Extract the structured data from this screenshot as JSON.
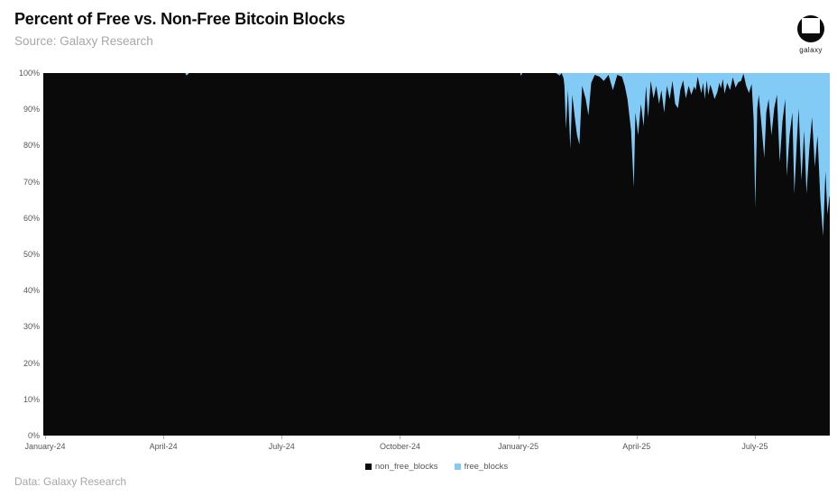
{
  "header": {
    "title": "Percent of Free vs. Non-Free Bitcoin Blocks",
    "subtitle": "Source: Galaxy Research",
    "logo": {
      "brand": "galaxy"
    }
  },
  "footer": {
    "data_source": "Data: Galaxy Research"
  },
  "legend": [
    {
      "label": "non_free_blocks",
      "color": "#0a0a0a"
    },
    {
      "label": "free_blocks",
      "color": "#83cbf7"
    }
  ],
  "chart_data": {
    "type": "area",
    "stacked": true,
    "title": "Percent of Free vs. Non-Free Bitcoin Blocks",
    "xlabel": "",
    "ylabel": "",
    "ylim": [
      0,
      100
    ],
    "grid": false,
    "legend_position": "bottom-center",
    "y_tick_labels": [
      "0%",
      "10%",
      "20%",
      "30%",
      "40%",
      "50%",
      "60%",
      "70%",
      "80%",
      "90%",
      "100%"
    ],
    "x_unit": "months since January 2024",
    "x_range": [
      0,
      19.9
    ],
    "x_ticks": [
      {
        "t": 0,
        "label": "January-24"
      },
      {
        "t": 3,
        "label": "April-24"
      },
      {
        "t": 6,
        "label": "July-24"
      },
      {
        "t": 9,
        "label": "October-24"
      },
      {
        "t": 12,
        "label": "January-25"
      },
      {
        "t": 15,
        "label": "April-25"
      },
      {
        "t": 18,
        "label": "July-25"
      }
    ],
    "series": [
      {
        "name": "non_free_blocks",
        "color": "#0a0a0a",
        "stack_position": "bottom"
      },
      {
        "name": "free_blocks",
        "color": "#83cbf7",
        "stack_position": "top",
        "derivation": "100 - non_free_blocks"
      }
    ],
    "point_format": [
      "months_since_jan_2024",
      "non_free_blocks_pct"
    ],
    "points": [
      [
        0,
        100
      ],
      [
        1,
        100
      ],
      [
        2,
        100
      ],
      [
        3,
        100
      ],
      [
        3.55,
        100
      ],
      [
        3.59,
        99.3
      ],
      [
        3.65,
        100
      ],
      [
        4.5,
        100
      ],
      [
        5.5,
        100
      ],
      [
        6.5,
        100
      ],
      [
        7.5,
        100
      ],
      [
        8.5,
        100
      ],
      [
        9.5,
        100
      ],
      [
        10.5,
        100
      ],
      [
        11.5,
        100
      ],
      [
        12,
        100
      ],
      [
        12.05,
        100
      ],
      [
        12.07,
        99.2
      ],
      [
        12.1,
        100
      ],
      [
        12.6,
        100
      ],
      [
        12.95,
        100
      ],
      [
        13.05,
        99.3
      ],
      [
        13.1,
        100
      ],
      [
        13.15,
        98.5
      ],
      [
        13.17,
        96.5
      ],
      [
        13.21,
        84.6
      ],
      [
        13.26,
        95.3
      ],
      [
        13.32,
        79.1
      ],
      [
        13.37,
        94
      ],
      [
        13.44,
        87.1
      ],
      [
        13.49,
        82.8
      ],
      [
        13.55,
        80.3
      ],
      [
        13.62,
        96.5
      ],
      [
        13.71,
        92.8
      ],
      [
        13.78,
        88.3
      ],
      [
        13.85,
        97.3
      ],
      [
        13.94,
        99.5
      ],
      [
        14.06,
        99
      ],
      [
        14.17,
        97.8
      ],
      [
        14.29,
        99.5
      ],
      [
        14.4,
        95.3
      ],
      [
        14.51,
        99.5
      ],
      [
        14.63,
        99
      ],
      [
        14.7,
        96.5
      ],
      [
        14.77,
        92.8
      ],
      [
        14.86,
        84.1
      ],
      [
        14.93,
        68.4
      ],
      [
        14.97,
        89.1
      ],
      [
        15.04,
        82.8
      ],
      [
        15.11,
        91.5
      ],
      [
        15.18,
        85.3
      ],
      [
        15.24,
        96.5
      ],
      [
        15.29,
        87.8
      ],
      [
        15.36,
        97.8
      ],
      [
        15.43,
        93
      ],
      [
        15.5,
        96.5
      ],
      [
        15.57,
        91.5
      ],
      [
        15.63,
        95.3
      ],
      [
        15.7,
        89.1
      ],
      [
        15.77,
        96.5
      ],
      [
        15.84,
        92.8
      ],
      [
        15.91,
        97.8
      ],
      [
        15.98,
        91.5
      ],
      [
        16.05,
        90.3
      ],
      [
        16.11,
        95.3
      ],
      [
        16.18,
        98
      ],
      [
        16.25,
        93
      ],
      [
        16.32,
        96.5
      ],
      [
        16.39,
        94
      ],
      [
        16.46,
        96.3
      ],
      [
        16.5,
        95.3
      ],
      [
        16.55,
        99
      ],
      [
        16.64,
        94.5
      ],
      [
        16.69,
        97.3
      ],
      [
        16.73,
        92.8
      ],
      [
        16.78,
        98
      ],
      [
        16.82,
        94
      ],
      [
        16.87,
        96.8
      ],
      [
        16.91,
        95.5
      ],
      [
        16.98,
        92.8
      ],
      [
        17.05,
        94.8
      ],
      [
        17.1,
        97.3
      ],
      [
        17.14,
        95.8
      ],
      [
        17.19,
        98.3
      ],
      [
        17.23,
        94.3
      ],
      [
        17.3,
        97.3
      ],
      [
        17.37,
        95.3
      ],
      [
        17.44,
        98.8
      ],
      [
        17.51,
        96
      ],
      [
        17.58,
        97.5
      ],
      [
        17.65,
        97.8
      ],
      [
        17.71,
        99.8
      ],
      [
        17.78,
        96.5
      ],
      [
        17.85,
        94.5
      ],
      [
        17.92,
        97
      ],
      [
        17.97,
        87.1
      ],
      [
        18.01,
        62.9
      ],
      [
        18.06,
        90.3
      ],
      [
        18.1,
        94
      ],
      [
        18.17,
        85.3
      ],
      [
        18.24,
        76.6
      ],
      [
        18.29,
        89.1
      ],
      [
        18.35,
        92.8
      ],
      [
        18.42,
        82.8
      ],
      [
        18.49,
        90.3
      ],
      [
        18.56,
        94
      ],
      [
        18.63,
        75.4
      ],
      [
        18.7,
        86.6
      ],
      [
        18.77,
        92.8
      ],
      [
        18.81,
        71.6
      ],
      [
        18.88,
        82.8
      ],
      [
        18.95,
        89.1
      ],
      [
        19,
        66.7
      ],
      [
        19.06,
        80.3
      ],
      [
        19.11,
        90.3
      ],
      [
        19.18,
        70.4
      ],
      [
        19.25,
        84.1
      ],
      [
        19.31,
        66.7
      ],
      [
        19.38,
        79.1
      ],
      [
        19.45,
        87.8
      ],
      [
        19.52,
        74.1
      ],
      [
        19.59,
        82.8
      ],
      [
        19.66,
        65.4
      ],
      [
        19.73,
        55
      ],
      [
        19.79,
        72.9
      ],
      [
        19.84,
        61
      ],
      [
        19.89,
        66
      ]
    ]
  }
}
